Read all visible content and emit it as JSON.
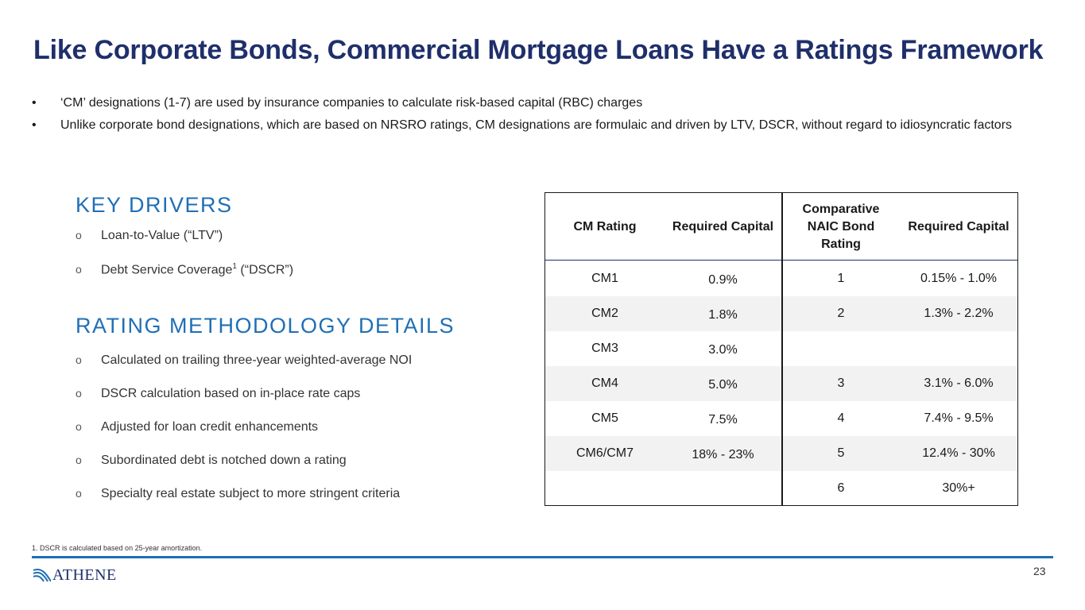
{
  "title": "Like Corporate Bonds, Commercial Mortgage Loans Have a Ratings Framework",
  "bullets": [
    "‘CM’ designations (1-7) are used by insurance companies to calculate risk-based capital (RBC) charges",
    "Unlike corporate bond designations, which are based on NRSRO ratings, CM designations are formulaic and driven by LTV, DSCR, without regard to idiosyncratic factors"
  ],
  "bullet_symbol": "•",
  "key_drivers": {
    "heading": "KEY DRIVERS",
    "items": [
      {
        "text": "Loan-to-Value (“LTV”)"
      },
      {
        "text_a": "Debt Service Coverage",
        "sup": "1",
        "text_b": " (“DSCR”)"
      }
    ]
  },
  "methodology": {
    "heading": "RATING METHODOLOGY DETAILS",
    "items": [
      "Calculated on trailing three-year weighted-average NOI",
      "DSCR calculation based on in-place rate caps",
      "Adjusted for loan credit enhancements",
      "Subordinated debt is notched down a rating",
      "Specialty real estate subject to more stringent criteria"
    ]
  },
  "sub_bullet_symbol": "o",
  "table": {
    "headers": [
      "CM Rating",
      "Required Capital",
      "Comparative NAIC Bond Rating",
      "Required Capital"
    ],
    "rows": [
      [
        "CM1",
        "0.9%",
        "1",
        "0.15% - 1.0%"
      ],
      [
        "CM2",
        "1.8%",
        "2",
        "1.3% - 2.2%"
      ],
      [
        "CM3",
        "3.0%",
        "",
        ""
      ],
      [
        "CM4",
        "5.0%",
        "3",
        "3.1% - 6.0%"
      ],
      [
        "CM5",
        "7.5%",
        "4",
        "7.4% - 9.5%"
      ],
      [
        "CM6/CM7",
        "18% - 23%",
        "5",
        "12.4% - 30%"
      ],
      [
        "",
        "",
        "6",
        "30%+"
      ]
    ]
  },
  "footnote": "1. DSCR is calculated based on 25-year amortization.",
  "logo": "ATHENE",
  "page_number": "23",
  "colors": {
    "title": "#1f2f6b",
    "accent": "#1f6fb5",
    "shade": "#f2f2f2"
  }
}
